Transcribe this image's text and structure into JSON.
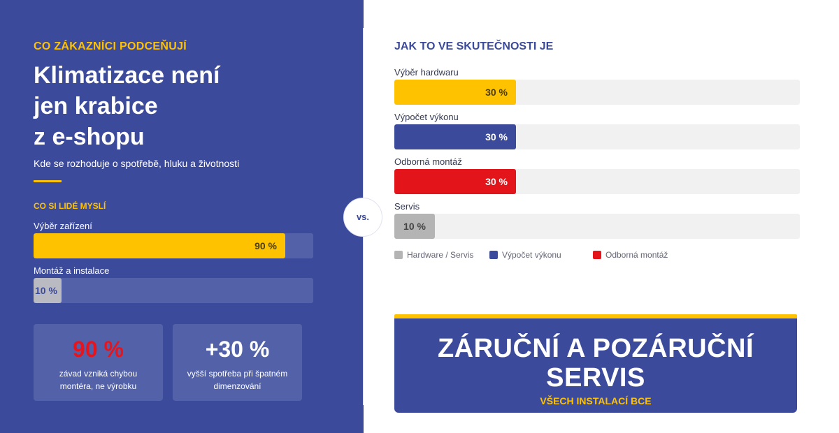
{
  "left": {
    "eyebrow": "CO ZÁKAZNÍCI PODCEŇUJÍ",
    "headline": [
      "Klimatizace není",
      "jen krabice",
      "z e-shopu"
    ],
    "subtitle": "Kde se rozhoduje o spotřebě, hluku a životnosti",
    "think_label": "CO SI LIDÉ MYSLÍ",
    "bars": [
      {
        "label": "Výběr zařízení",
        "value": 90,
        "value_label": "90 %",
        "color": "#fec200",
        "text_color": "#4a3d00"
      },
      {
        "label": "Montáž a instalace",
        "value": 10,
        "value_label": "10 %",
        "color": "#b9bac2",
        "text_color": "#3c4a9b"
      }
    ],
    "stats": [
      {
        "value": "90 %",
        "value_color": "#e8141c",
        "desc": "závad vzniká chybou montéra, ne výrobku"
      },
      {
        "value": "+30 %",
        "value_color": "#ffffff",
        "desc": "vyšší spotřeba při špatném dimenzování"
      }
    ]
  },
  "vs": "vs.",
  "right": {
    "title": "JAK TO VE SKUTEČNOSTI JE",
    "bars": [
      {
        "label": "Výběr hardwaru",
        "value": 30,
        "value_label": "30 %",
        "color": "#fec200",
        "text_color": "#4a3d00"
      },
      {
        "label": "Výpočet výkonu",
        "value": 30,
        "value_label": "30 %",
        "color": "#3c4a9b",
        "text_color": "#ffffff"
      },
      {
        "label": "Odborná montáž",
        "value": 30,
        "value_label": "30 %",
        "color": "#e3141a",
        "text_color": "#ffffff"
      },
      {
        "label": "Servis",
        "value": 10,
        "value_label": "10 %",
        "color": "#b4b4b4",
        "text_color": "#444444"
      }
    ],
    "legend": [
      {
        "label": "Hardware / Servis",
        "color": "#b4b4b4"
      },
      {
        "label": "Výpočet výkonu",
        "color": "#3c4a9b"
      },
      {
        "label": "Odborná montáž",
        "color": "#e3141a"
      }
    ],
    "banner": {
      "title_lines": [
        "ZÁRUČNÍ A POZÁRUČNÍ",
        "SERVIS"
      ],
      "subtitle": "VŠECH INSTALACÍ BCE"
    }
  }
}
